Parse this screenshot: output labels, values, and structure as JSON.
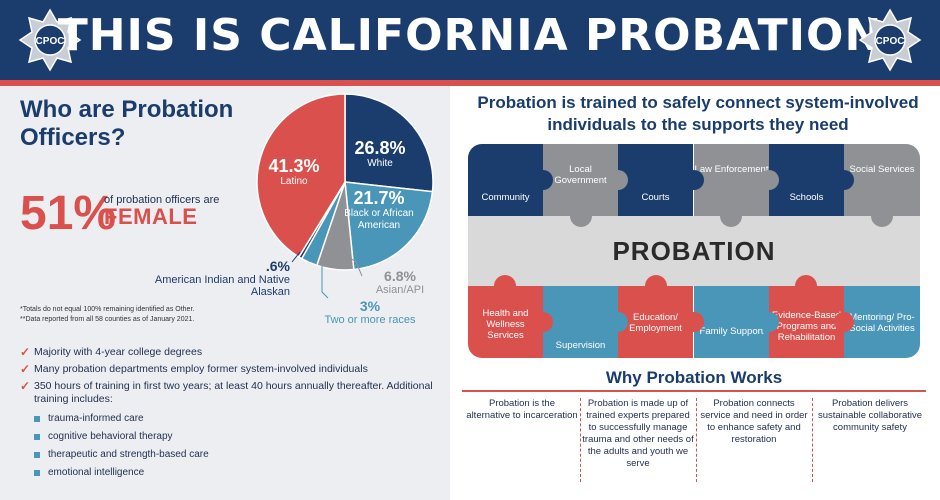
{
  "header": {
    "title": "THIS IS CALIFORNIA PROBATION",
    "badge_text": "CPOC",
    "colors": {
      "navy": "#1a3d6d",
      "red": "#d9504d",
      "teal": "#4a96b8",
      "gray": "#8f9194"
    }
  },
  "left": {
    "title": "Who are Probation Officers?",
    "stat_number": "51%",
    "stat_text": "of probation officers are",
    "stat_highlight": "FEMALE",
    "footnote1": "*Totals do not equal 100% remaining identified as Other.",
    "footnote2": "**Data reported from all 58 counties as of January 2021.",
    "checks": [
      "Majority with 4-year college degrees",
      "Many probation departments employ former system-involved individuals",
      "350 hours of training in first two years; at least 40 hours annually thereafter. Additional training includes:"
    ],
    "sub_items": [
      "trauma-informed care",
      "cognitive behavioral therapy",
      "therapeutic and strength-based care",
      "emotional intelligence"
    ]
  },
  "chart_data": {
    "type": "pie",
    "slices": [
      {
        "pct": "26.8%",
        "label": "White",
        "value": 26.8,
        "color": "#1a3d6d"
      },
      {
        "pct": "21.7%",
        "label": "Black or African American",
        "value": 21.7,
        "color": "#4a96b8"
      },
      {
        "pct": "6.8%",
        "label": "Asian/API",
        "value": 6.8,
        "color": "#8f9194"
      },
      {
        "pct": "3%",
        "label": "Two or more races",
        "value": 3,
        "color": "#4a96b8"
      },
      {
        "pct": ".6%",
        "label": "American Indian and Native Alaskan",
        "value": 0.6,
        "color": "#1a3d6d"
      },
      {
        "pct": "41.3%",
        "label": "Latino",
        "value": 41.3,
        "color": "#d9504d"
      }
    ]
  },
  "right": {
    "title": "Probation is trained to safely connect system-involved individuals to the supports they need",
    "center_label": "PROBATION",
    "top_pieces": [
      {
        "label": "Community",
        "color": "#1a3d6d"
      },
      {
        "label": "Local Government",
        "color": "#8f9194"
      },
      {
        "label": "Courts",
        "color": "#1a3d6d"
      },
      {
        "label": "Law Enforcement",
        "color": "#8f9194"
      },
      {
        "label": "Schools",
        "color": "#1a3d6d"
      },
      {
        "label": "Social Services",
        "color": "#8f9194"
      }
    ],
    "bottom_pieces": [
      {
        "label": "Health and Wellness Services",
        "color": "#d9504d"
      },
      {
        "label": "Supervision",
        "color": "#4a96b8"
      },
      {
        "label": "Education/ Employment",
        "color": "#d9504d"
      },
      {
        "label": "Family Support",
        "color": "#4a96b8"
      },
      {
        "label": "Evidence-Based Programs and Rehabilitation",
        "color": "#d9504d"
      },
      {
        "label": "Mentoring/ Pro-Social Activities",
        "color": "#4a96b8"
      }
    ],
    "why_title": "Why Probation Works",
    "why": [
      "Probation is the alternative to incarceration",
      "Probation is made up of trained experts prepared to successfully manage trauma and other needs of the adults and youth we serve",
      "Probation connects service and need in order to enhance safety and restoration",
      "Probation delivers sustainable collaborative community safety"
    ]
  }
}
